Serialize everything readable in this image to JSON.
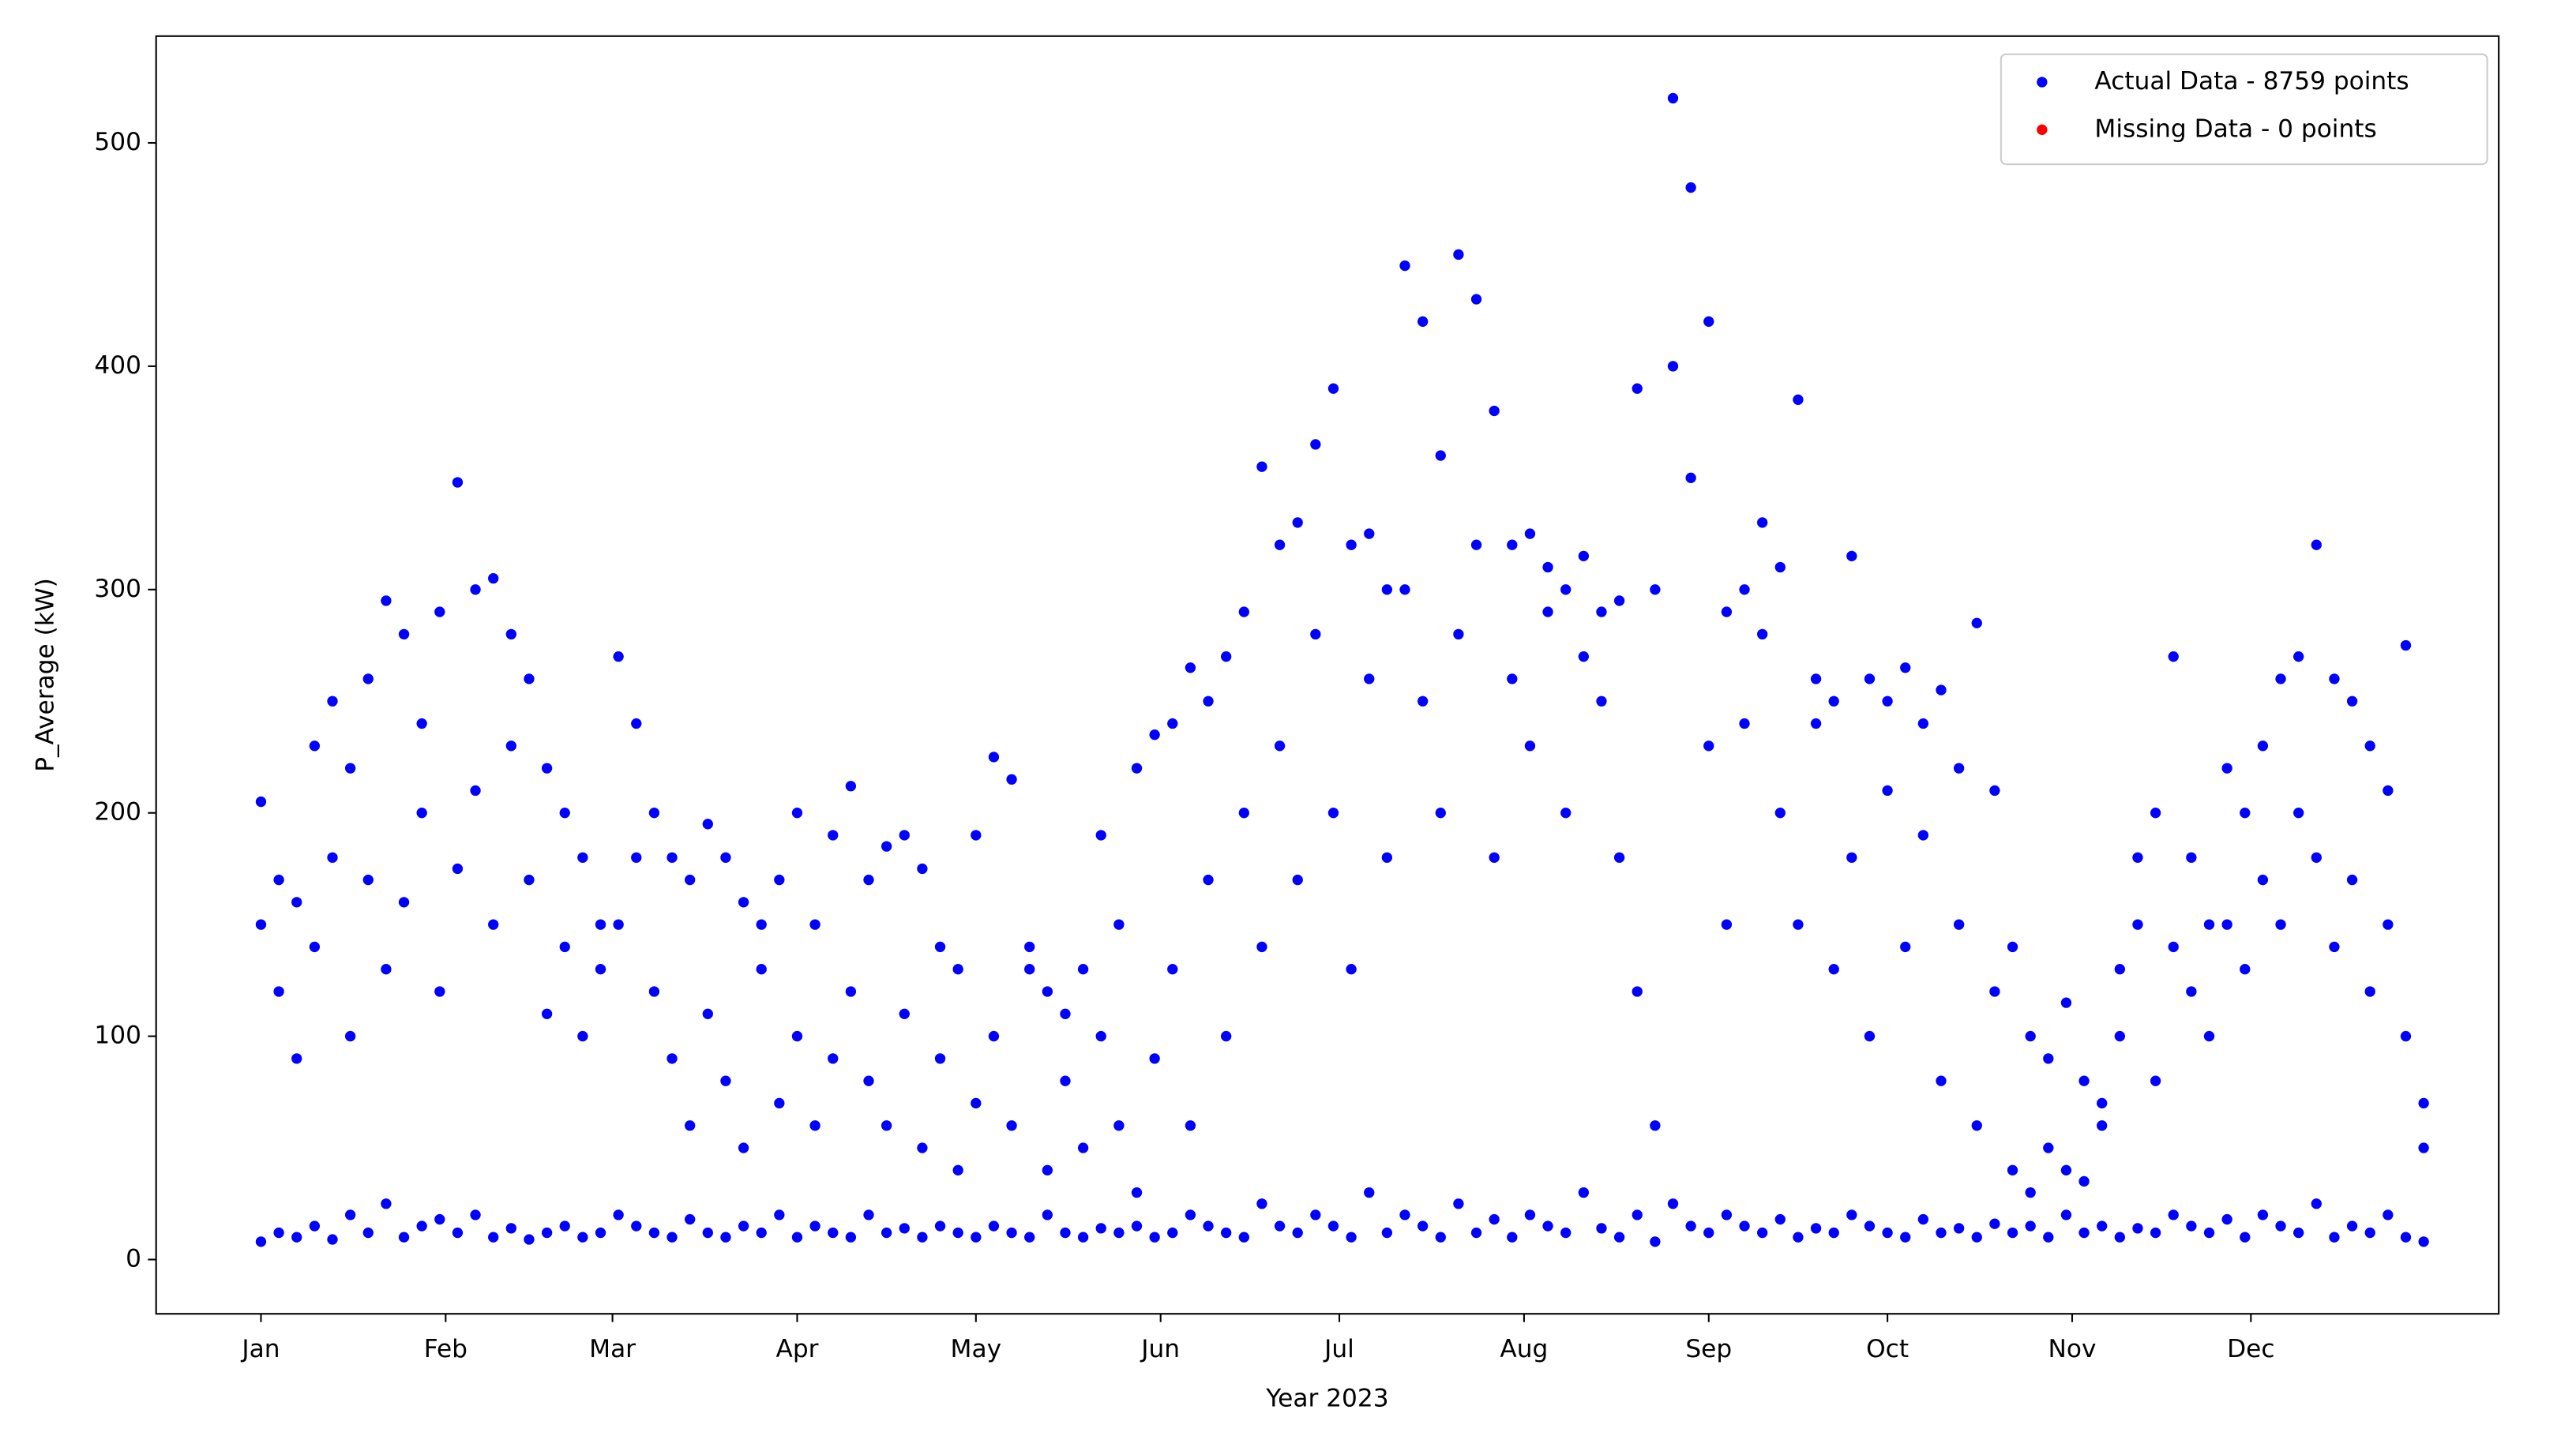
{
  "chart_data": {
    "type": "scatter",
    "xlabel": "Year 2023",
    "ylabel": "P_Average (kW)",
    "xlim": [
      -17.6,
      375.6
    ],
    "ylim": [
      -24.3,
      547.8
    ],
    "xticks": [
      {
        "value": 0,
        "label": "Jan"
      },
      {
        "value": 31,
        "label": "Feb"
      },
      {
        "value": 59,
        "label": "Mar"
      },
      {
        "value": 90,
        "label": "Apr"
      },
      {
        "value": 120,
        "label": "May"
      },
      {
        "value": 151,
        "label": "Jun"
      },
      {
        "value": 181,
        "label": "Jul"
      },
      {
        "value": 212,
        "label": "Aug"
      },
      {
        "value": 243,
        "label": "Sep"
      },
      {
        "value": 273,
        "label": "Oct"
      },
      {
        "value": 304,
        "label": "Nov"
      },
      {
        "value": 334,
        "label": "Dec"
      }
    ],
    "yticks": [
      0,
      100,
      200,
      300,
      400,
      500
    ],
    "grid": false,
    "legend": "upper right",
    "series": [
      {
        "name": "Actual Data - 8759 points",
        "color": "#0000ff",
        "x": [
          0,
          0,
          0,
          3,
          3,
          3,
          6,
          6,
          6,
          9,
          9,
          9,
          12,
          12,
          12,
          15,
          15,
          15,
          18,
          18,
          18,
          21,
          21,
          21,
          24,
          24,
          24,
          27,
          27,
          27,
          30,
          30,
          30,
          33,
          33,
          33,
          36,
          36,
          36,
          39,
          39,
          39,
          42,
          42,
          42,
          45,
          45,
          45,
          48,
          48,
          48,
          51,
          51,
          51,
          54,
          54,
          54,
          57,
          57,
          57,
          60,
          60,
          60,
          63,
          63,
          63,
          66,
          66,
          66,
          69,
          69,
          69,
          72,
          72,
          72,
          75,
          75,
          75,
          78,
          78,
          78,
          81,
          81,
          81,
          84,
          84,
          84,
          87,
          87,
          87,
          90,
          90,
          90,
          93,
          93,
          93,
          96,
          96,
          96,
          99,
          99,
          99,
          102,
          102,
          102,
          105,
          105,
          105,
          108,
          108,
          108,
          111,
          111,
          111,
          114,
          114,
          114,
          117,
          117,
          117,
          120,
          120,
          120,
          123,
          123,
          123,
          126,
          126,
          126,
          129,
          129,
          129,
          132,
          132,
          132,
          135,
          135,
          135,
          138,
          138,
          138,
          141,
          141,
          141,
          144,
          144,
          144,
          147,
          147,
          147,
          150,
          150,
          150,
          153,
          153,
          153,
          156,
          156,
          156,
          159,
          159,
          159,
          162,
          162,
          162,
          165,
          165,
          165,
          168,
          168,
          168,
          171,
          171,
          171,
          174,
          174,
          174,
          177,
          177,
          177,
          180,
          180,
          180,
          183,
          183,
          183,
          186,
          186,
          186,
          189,
          189,
          189,
          192,
          192,
          192,
          195,
          195,
          195,
          198,
          198,
          198,
          201,
          201,
          201,
          204,
          204,
          204,
          207,
          207,
          207,
          210,
          210,
          210,
          213,
          213,
          213,
          216,
          216,
          216,
          219,
          219,
          219,
          222,
          222,
          222,
          225,
          225,
          225,
          228,
          228,
          228,
          231,
          231,
          231,
          234,
          234,
          234,
          237,
          237,
          237,
          240,
          240,
          240,
          243,
          243,
          243,
          246,
          246,
          246,
          249,
          249,
          249,
          252,
          252,
          252,
          255,
          255,
          255,
          258,
          258,
          258,
          261,
          261,
          261,
          264,
          264,
          264,
          267,
          267,
          267,
          270,
          270,
          270,
          273,
          273,
          273,
          276,
          276,
          276,
          279,
          279,
          279,
          282,
          282,
          282,
          285,
          285,
          285,
          288,
          288,
          288,
          291,
          291,
          291,
          294,
          294,
          294,
          297,
          297,
          297,
          300,
          300,
          300,
          303,
          303,
          303,
          306,
          306,
          306,
          309,
          309,
          309,
          312,
          312,
          312,
          315,
          315,
          315,
          318,
          318,
          318,
          321,
          321,
          321,
          324,
          324,
          324,
          327,
          327,
          327,
          330,
          330,
          330,
          333,
          333,
          333,
          336,
          336,
          336,
          339,
          339,
          339,
          342,
          342,
          342,
          345,
          345,
          345,
          348,
          348,
          348,
          351,
          351,
          351,
          354,
          354,
          354,
          357,
          357,
          357,
          360,
          360,
          360,
          363,
          363,
          363
        ],
        "values": [
          8,
          150,
          205,
          12,
          120,
          170,
          10,
          90,
          160,
          15,
          140,
          230,
          9,
          180,
          250,
          20,
          100,
          220,
          12,
          170,
          260,
          25,
          130,
          295,
          10,
          160,
          280,
          15,
          200,
          240,
          18,
          120,
          290,
          12,
          175,
          348,
          20,
          210,
          300,
          10,
          150,
          305,
          14,
          230,
          280,
          9,
          170,
          260,
          12,
          110,
          220,
          15,
          140,
          200,
          10,
          100,
          180,
          12,
          130,
          150,
          20,
          150,
          270,
          15,
          180,
          240,
          12,
          120,
          200,
          10,
          90,
          180,
          18,
          60,
          170,
          12,
          110,
          195,
          10,
          80,
          180,
          15,
          50,
          160,
          12,
          130,
          150,
          20,
          70,
          170,
          10,
          100,
          200,
          15,
          60,
          150,
          12,
          90,
          190,
          10,
          120,
          212,
          20,
          80,
          170,
          12,
          60,
          185,
          14,
          110,
          190,
          10,
          50,
          175,
          15,
          90,
          140,
          12,
          40,
          130,
          10,
          70,
          190,
          15,
          100,
          225,
          12,
          60,
          215,
          10,
          130,
          140,
          20,
          40,
          120,
          12,
          80,
          110,
          10,
          50,
          130,
          14,
          100,
          190,
          12,
          60,
          150,
          15,
          30,
          220,
          10,
          90,
          235,
          12,
          130,
          240,
          20,
          60,
          265,
          15,
          170,
          250,
          12,
          100,
          270,
          10,
          200,
          290,
          25,
          140,
          355,
          15,
          230,
          320,
          12,
          170,
          330,
          20,
          280,
          365,
          15,
          200,
          390,
          10,
          130,
          320,
          30,
          260,
          325,
          12,
          180,
          300,
          20,
          300,
          445,
          15,
          250,
          420,
          10,
          200,
          360,
          25,
          280,
          450,
          12,
          320,
          430,
          18,
          180,
          380,
          10,
          260,
          320,
          20,
          230,
          325,
          15,
          290,
          310,
          12,
          200,
          300,
          30,
          270,
          315,
          14,
          250,
          290,
          10,
          180,
          295,
          20,
          120,
          390,
          8,
          60,
          300,
          25,
          400,
          520,
          15,
          350,
          480,
          12,
          230,
          420,
          20,
          150,
          290,
          15,
          240,
          300,
          12,
          280,
          330,
          18,
          200,
          310,
          10,
          150,
          385,
          14,
          240,
          260,
          12,
          130,
          250,
          20,
          180,
          315,
          15,
          100,
          260,
          12,
          210,
          250,
          10,
          140,
          265,
          18,
          190,
          240,
          12,
          80,
          255,
          14,
          150,
          220,
          10,
          60,
          285,
          16,
          120,
          210,
          12,
          40,
          140,
          15,
          30,
          100,
          10,
          50,
          90,
          20,
          40,
          115,
          12,
          35,
          80,
          15,
          60,
          70,
          10,
          100,
          130,
          14,
          150,
          180,
          12,
          80,
          200,
          20,
          140,
          270,
          15,
          120,
          180,
          12,
          100,
          150,
          18,
          150,
          220,
          10,
          130,
          200,
          20,
          170,
          230,
          15,
          150,
          260,
          12,
          200,
          270,
          25,
          180,
          320,
          10,
          140,
          260,
          15,
          170,
          250,
          12,
          120,
          230,
          20,
          150,
          210,
          10,
          100,
          275,
          8,
          50,
          70
        ]
      },
      {
        "name": "Missing Data - 0 points",
        "color": "#ff0000",
        "x": [],
        "values": []
      }
    ]
  }
}
